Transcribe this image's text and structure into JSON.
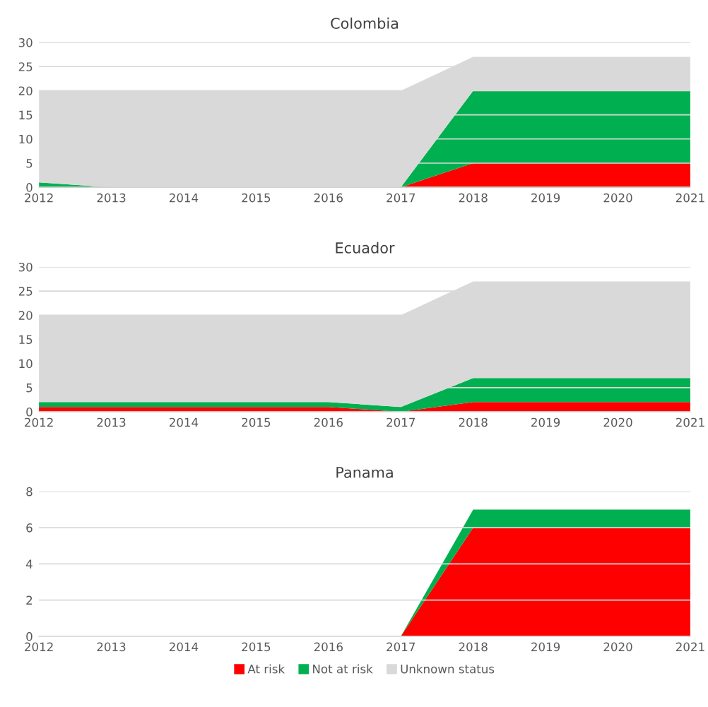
{
  "chart_data": [
    {
      "type": "area",
      "stacked": true,
      "title": "Colombia",
      "x": [
        "2012",
        "2013",
        "2014",
        "2015",
        "2016",
        "2017",
        "2018",
        "2019",
        "2020",
        "2021"
      ],
      "xlim": [
        "2012",
        "2021"
      ],
      "xticks": [
        "2012",
        "2013",
        "2014",
        "2015",
        "2016",
        "2017",
        "2018",
        "2019",
        "2020",
        "2021"
      ],
      "ylim": [
        0,
        30
      ],
      "yticks": [
        0,
        5,
        10,
        15,
        20,
        25,
        30
      ],
      "grid": "y",
      "legend": false,
      "series": [
        {
          "color": "#ff0000",
          "values": [
            0,
            0,
            0,
            0,
            0,
            0,
            5,
            5,
            5,
            5
          ]
        },
        {
          "color": "#00b050",
          "values": [
            1,
            0,
            0,
            0,
            0,
            0,
            15,
            15,
            15,
            15
          ]
        },
        {
          "color": "#d9d9d9",
          "values": [
            19,
            20,
            20,
            20,
            20,
            20,
            7,
            7,
            7,
            7
          ]
        }
      ]
    },
    {
      "type": "area",
      "stacked": true,
      "title": "Ecuador",
      "x": [
        "2012",
        "2013",
        "2014",
        "2015",
        "2016",
        "2017",
        "2018",
        "2019",
        "2020",
        "2021"
      ],
      "xlim": [
        "2012",
        "2021"
      ],
      "xticks": [
        "2012",
        "2013",
        "2014",
        "2015",
        "2016",
        "2017",
        "2018",
        "2019",
        "2020",
        "2021"
      ],
      "ylim": [
        0,
        30
      ],
      "yticks": [
        0,
        5,
        10,
        15,
        20,
        25,
        30
      ],
      "grid": "y",
      "legend": false,
      "series": [
        {
          "color": "#ff0000",
          "values": [
            1,
            1,
            1,
            1,
            1,
            0,
            2,
            2,
            2,
            2
          ]
        },
        {
          "color": "#00b050",
          "values": [
            1,
            1,
            1,
            1,
            1,
            1,
            5,
            5,
            5,
            5
          ]
        },
        {
          "color": "#d9d9d9",
          "values": [
            18,
            18,
            18,
            18,
            18,
            19,
            20,
            20,
            20,
            20
          ]
        }
      ]
    },
    {
      "type": "area",
      "stacked": true,
      "title": "Panama",
      "x": [
        "2012",
        "2013",
        "2014",
        "2015",
        "2016",
        "2017",
        "2018",
        "2019",
        "2020",
        "2021"
      ],
      "xlim": [
        "2012",
        "2021"
      ],
      "xticks": [
        "2012",
        "2013",
        "2014",
        "2015",
        "2016",
        "2017",
        "2018",
        "2019",
        "2020",
        "2021"
      ],
      "ylim": [
        0,
        8
      ],
      "yticks": [
        0,
        2,
        4,
        6,
        8
      ],
      "grid": "y",
      "legend": "bottom",
      "series": [
        {
          "name": "At risk",
          "color": "#ff0000",
          "values": [
            0,
            0,
            0,
            0,
            0,
            0,
            6,
            6,
            6,
            6
          ]
        },
        {
          "name": "Not at risk",
          "color": "#00b050",
          "values": [
            0,
            0,
            0,
            0,
            0,
            0,
            1,
            1,
            1,
            1
          ]
        },
        {
          "name": "Unknown status",
          "color": "#d9d9d9",
          "values": [
            null,
            null,
            null,
            null,
            null,
            null,
            null,
            null,
            null,
            null
          ]
        }
      ]
    }
  ]
}
